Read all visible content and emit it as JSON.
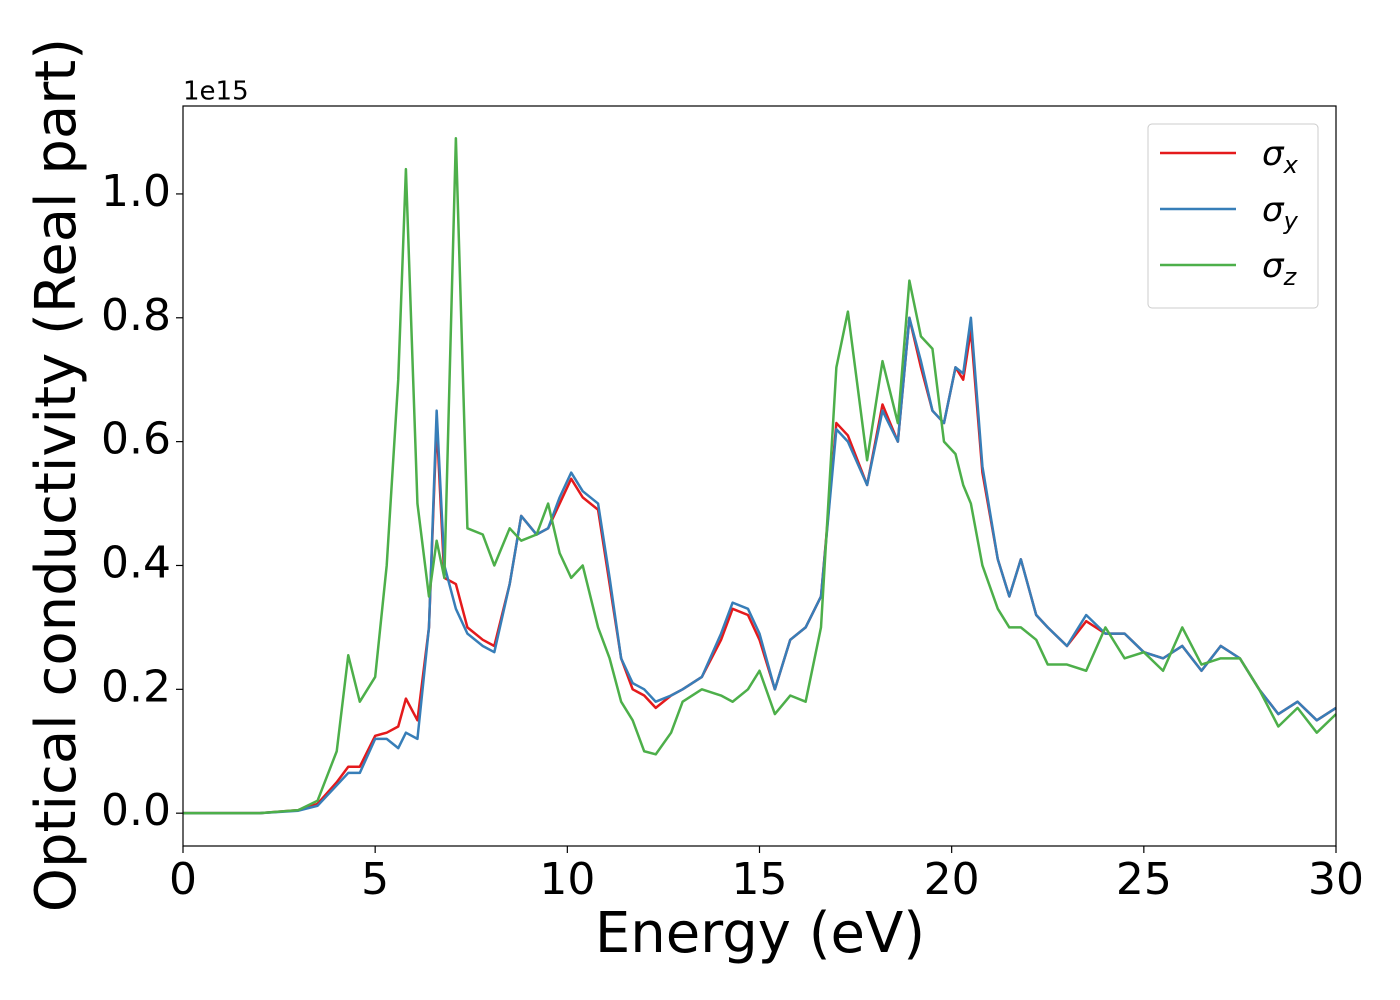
{
  "chart_data": {
    "type": "line",
    "y_label": "Optical conductivity (Real part)",
    "x_label": "Energy (eV)",
    "y_offset_label": "1e15",
    "x": [
      0,
      1,
      2,
      3,
      3.5,
      4,
      4.3,
      4.6,
      5,
      5.3,
      5.6,
      5.8,
      6.1,
      6.4,
      6.6,
      6.8,
      7.1,
      7.4,
      7.8,
      8.1,
      8.5,
      8.8,
      9.2,
      9.5,
      9.8,
      10.1,
      10.4,
      10.8,
      11.1,
      11.4,
      11.7,
      12,
      12.3,
      12.7,
      13,
      13.5,
      14,
      14.3,
      14.7,
      15,
      15.4,
      15.8,
      16.2,
      16.6,
      17,
      17.3,
      17.8,
      18.2,
      18.6,
      18.9,
      19.2,
      19.5,
      19.8,
      20.1,
      20.3,
      20.5,
      20.8,
      21.2,
      21.5,
      21.8,
      22.2,
      22.5,
      23,
      23.5,
      24,
      24.5,
      25,
      25.5,
      26,
      26.5,
      27,
      27.5,
      28,
      28.5,
      29,
      29.5,
      30
    ],
    "series": [
      {
        "name": "σx",
        "color": "#e41a1c",
        "values": [
          0,
          0,
          0,
          0.005,
          0.015,
          0.05,
          0.075,
          0.075,
          0.125,
          0.13,
          0.14,
          0.185,
          0.15,
          0.3,
          0.63,
          0.38,
          0.37,
          0.3,
          0.28,
          0.27,
          0.37,
          0.48,
          0.45,
          0.46,
          0.5,
          0.54,
          0.51,
          0.49,
          0.37,
          0.25,
          0.2,
          0.19,
          0.17,
          0.19,
          0.2,
          0.22,
          0.28,
          0.33,
          0.32,
          0.28,
          0.2,
          0.28,
          0.3,
          0.35,
          0.63,
          0.61,
          0.53,
          0.66,
          0.6,
          0.8,
          0.72,
          0.65,
          0.63,
          0.72,
          0.7,
          0.78,
          0.55,
          0.41,
          0.35,
          0.41,
          0.32,
          0.3,
          0.27,
          0.31,
          0.29,
          0.29,
          0.26,
          0.25,
          0.27,
          0.23,
          0.27,
          0.25,
          0.2,
          0.16,
          0.18,
          0.15,
          0.17
        ]
      },
      {
        "name": "σy",
        "color": "#377eb8",
        "values": [
          0,
          0,
          0,
          0.004,
          0.012,
          0.045,
          0.065,
          0.065,
          0.12,
          0.12,
          0.105,
          0.13,
          0.12,
          0.3,
          0.65,
          0.4,
          0.33,
          0.29,
          0.27,
          0.26,
          0.37,
          0.48,
          0.45,
          0.46,
          0.51,
          0.55,
          0.52,
          0.5,
          0.38,
          0.25,
          0.21,
          0.2,
          0.18,
          0.19,
          0.2,
          0.22,
          0.29,
          0.34,
          0.33,
          0.29,
          0.2,
          0.28,
          0.3,
          0.35,
          0.62,
          0.6,
          0.53,
          0.65,
          0.6,
          0.8,
          0.73,
          0.65,
          0.63,
          0.72,
          0.71,
          0.8,
          0.56,
          0.41,
          0.35,
          0.41,
          0.32,
          0.3,
          0.27,
          0.32,
          0.29,
          0.29,
          0.26,
          0.25,
          0.27,
          0.23,
          0.27,
          0.25,
          0.2,
          0.16,
          0.18,
          0.15,
          0.17
        ]
      },
      {
        "name": "σz",
        "color": "#4daf4a",
        "values": [
          0,
          0,
          0,
          0.005,
          0.02,
          0.1,
          0.255,
          0.18,
          0.22,
          0.4,
          0.7,
          1.04,
          0.5,
          0.35,
          0.44,
          0.38,
          1.09,
          0.46,
          0.45,
          0.4,
          0.46,
          0.44,
          0.45,
          0.5,
          0.42,
          0.38,
          0.4,
          0.3,
          0.25,
          0.18,
          0.15,
          0.1,
          0.095,
          0.13,
          0.18,
          0.2,
          0.19,
          0.18,
          0.2,
          0.23,
          0.16,
          0.19,
          0.18,
          0.3,
          0.72,
          0.81,
          0.57,
          0.73,
          0.63,
          0.86,
          0.77,
          0.75,
          0.6,
          0.58,
          0.53,
          0.5,
          0.4,
          0.33,
          0.3,
          0.3,
          0.28,
          0.24,
          0.24,
          0.23,
          0.3,
          0.25,
          0.26,
          0.23,
          0.3,
          0.24,
          0.25,
          0.25,
          0.2,
          0.14,
          0.17,
          0.13,
          0.16
        ]
      }
    ],
    "xlim": [
      0,
      30
    ],
    "xticks": [
      0,
      5,
      10,
      15,
      20,
      25,
      30
    ],
    "ylim": [
      -0.053,
      1.142
    ],
    "yticks": [
      {
        "value": 0,
        "label": "0.0"
      },
      {
        "value": 0.2,
        "label": "0.2"
      },
      {
        "value": 0.4,
        "label": "0.4"
      },
      {
        "value": 0.6,
        "label": "0.6"
      },
      {
        "value": 0.8,
        "label": "0.8"
      },
      {
        "value": 1.0,
        "label": "1.0"
      }
    ],
    "legend": "upper right",
    "grid": false
  }
}
